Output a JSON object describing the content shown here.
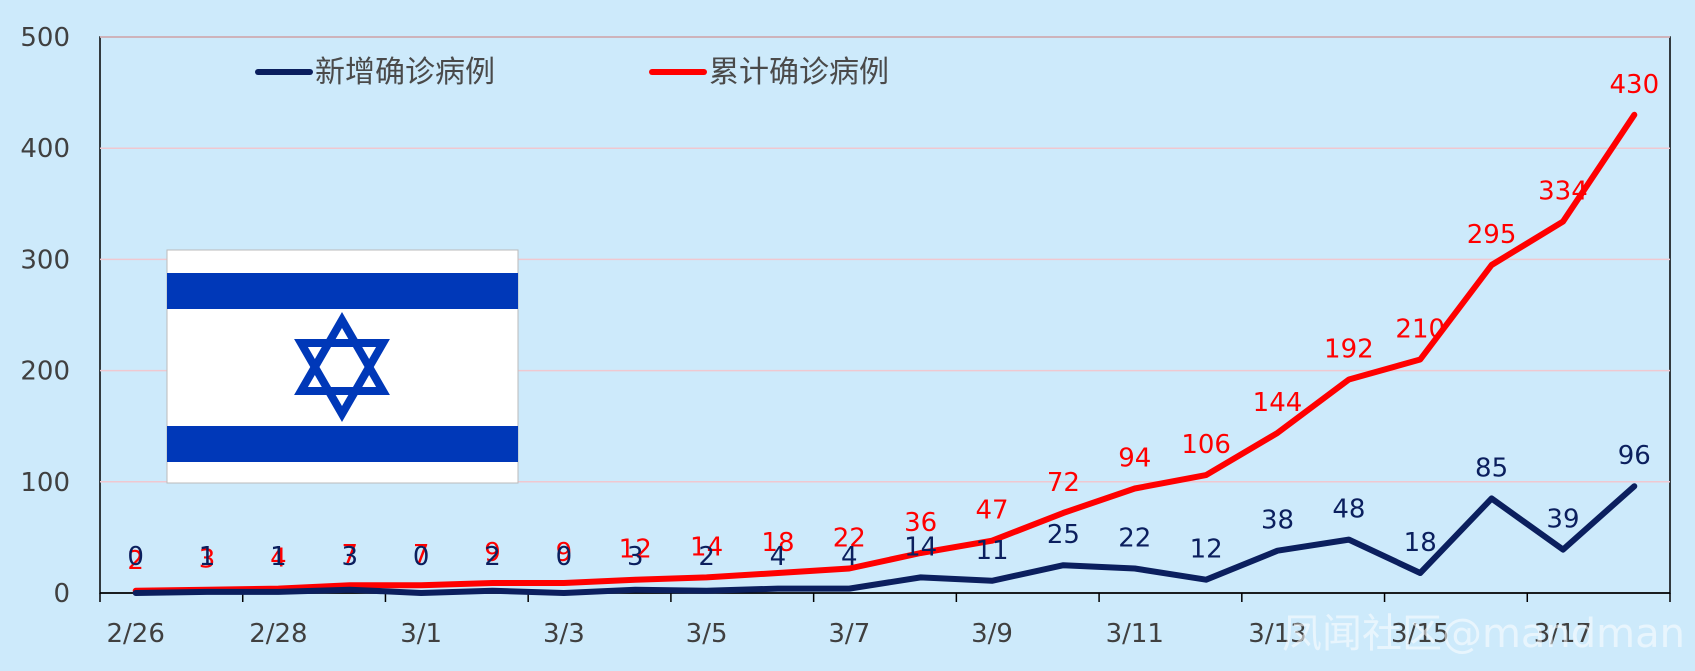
{
  "chart_data": {
    "type": "line",
    "categories": [
      "2/26",
      "2/27",
      "2/28",
      "2/29",
      "3/1",
      "3/2",
      "3/3",
      "3/4",
      "3/5",
      "3/6",
      "3/7",
      "3/8",
      "3/9",
      "3/10",
      "3/11",
      "3/12",
      "3/13",
      "3/14",
      "3/15",
      "3/16",
      "3/17",
      "3/18"
    ],
    "x_tick_labels": [
      "2/26",
      "2/28",
      "3/1",
      "3/3",
      "3/5",
      "3/7",
      "3/9",
      "3/11",
      "3/13",
      "3/15",
      "3/17"
    ],
    "series": [
      {
        "name": "新增确诊病例",
        "color": "#0b1f5e",
        "values": [
          0,
          1,
          1,
          3,
          0,
          2,
          0,
          3,
          2,
          4,
          4,
          14,
          11,
          25,
          22,
          12,
          38,
          48,
          18,
          85,
          39,
          96
        ]
      },
      {
        "name": "累计确诊病例",
        "color": "#ff0000",
        "values": [
          2,
          3,
          4,
          7,
          7,
          9,
          9,
          12,
          14,
          18,
          22,
          36,
          47,
          72,
          94,
          106,
          144,
          192,
          210,
          295,
          334,
          430
        ]
      }
    ],
    "ylim": [
      0,
      500
    ],
    "yticks": [
      0,
      100,
      200,
      300,
      400,
      500
    ],
    "grid": true,
    "legend": "top-left",
    "background": "#cdeafb",
    "gridline_color": "#f0c8d0"
  },
  "legend": {
    "new_cases": "新增确诊病例",
    "total_cases": "累计确诊病例"
  },
  "flag": {
    "icon": "israel-flag",
    "stripe_color": "#0038b8"
  },
  "watermark": "凤闻社区@mandman"
}
